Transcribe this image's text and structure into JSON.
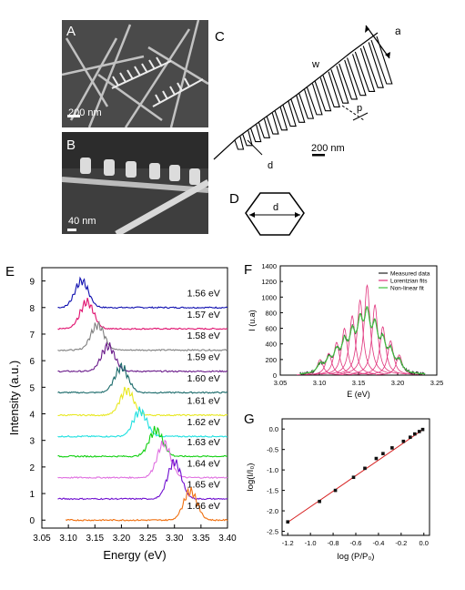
{
  "panels": {
    "A": {
      "letter": "A",
      "scale": "200 nm"
    },
    "B": {
      "letter": "B",
      "scale": "40 nm"
    },
    "C": {
      "letter": "C",
      "scale": "200 nm",
      "labels": {
        "a": "a",
        "w": "w",
        "p": "p",
        "d": "d"
      }
    },
    "D": {
      "letter": "D",
      "label": "d"
    }
  },
  "colors": {
    "sem_bg": "#5a5a5a",
    "fit_line": "#d62020"
  },
  "chart_data": [
    {
      "panel": "E",
      "type": "line",
      "xlabel": "Energy (eV)",
      "ylabel": "Intensity (a.u.)",
      "xlim": [
        3.05,
        3.4
      ],
      "ylim": [
        -0.3,
        9.5
      ],
      "xticks": [
        "3.05",
        "3.10",
        "3.15",
        "3.20",
        "3.25",
        "3.30",
        "3.35",
        "3.40"
      ],
      "yticks": [
        "0",
        "1",
        "2",
        "3",
        "4",
        "5",
        "6",
        "7",
        "8",
        "9"
      ],
      "series": [
        {
          "name": "1.56 eV",
          "offset": 8.0,
          "peak": 3.125,
          "height": 1.0,
          "color": "#1010b0"
        },
        {
          "name": "1.57 eV",
          "offset": 7.2,
          "peak": 3.135,
          "height": 1.0,
          "color": "#e0106e"
        },
        {
          "name": "1.58 eV",
          "offset": 6.4,
          "peak": 3.155,
          "height": 0.95,
          "color": "#808080"
        },
        {
          "name": "1.59 eV",
          "offset": 5.6,
          "peak": 3.175,
          "height": 0.95,
          "color": "#6a1a8a"
        },
        {
          "name": "1.60 eV",
          "offset": 4.8,
          "peak": 3.2,
          "height": 0.95,
          "color": "#1a6a6a"
        },
        {
          "name": "1.61 eV",
          "offset": 3.95,
          "peak": 3.21,
          "height": 0.95,
          "color": "#e8e820"
        },
        {
          "name": "1.62 eV",
          "offset": 3.15,
          "peak": 3.235,
          "height": 0.95,
          "color": "#20e0e0"
        },
        {
          "name": "1.63 eV",
          "offset": 2.4,
          "peak": 3.265,
          "height": 1.0,
          "color": "#10d010"
        },
        {
          "name": "1.64 eV",
          "offset": 1.6,
          "peak": 3.28,
          "height": 1.3,
          "color": "#e070e0"
        },
        {
          "name": "1.65 eV",
          "offset": 0.8,
          "peak": 3.3,
          "height": 1.4,
          "color": "#7010d0"
        },
        {
          "name": "1.66 eV",
          "offset": 0.0,
          "peak": 3.33,
          "height": 1.1,
          "color": "#f07010"
        }
      ]
    },
    {
      "panel": "F",
      "type": "line",
      "xlabel": "E (eV)",
      "ylabel": "I (u.a)",
      "xlim": [
        3.05,
        3.25
      ],
      "ylim": [
        0,
        1400
      ],
      "xticks": [
        "3.05",
        "3.10",
        "3.15",
        "3.20",
        "3.25"
      ],
      "yticks": [
        "0",
        "200",
        "400",
        "600",
        "800",
        "1000",
        "1200",
        "1400"
      ],
      "legend": [
        "Measured data",
        "Lorentzian fits",
        "Non-linear fit"
      ],
      "lorentz_centers": [
        3.101,
        3.112,
        3.122,
        3.132,
        3.142,
        3.152,
        3.161,
        3.171,
        3.181,
        3.191,
        3.202
      ],
      "lorentz_heights": [
        200,
        280,
        420,
        600,
        760,
        960,
        1150,
        900,
        620,
        440,
        260
      ],
      "colors": {
        "measured": "#222222",
        "lorentz": "#e0307a",
        "fit": "#40c040"
      }
    },
    {
      "panel": "G",
      "type": "scatter",
      "xlabel": "log (P/P₀)",
      "ylabel": "log(I/I₀)",
      "xlim": [
        -1.25,
        0.05
      ],
      "ylim": [
        -2.6,
        0.25
      ],
      "xticks": [
        "-1.2",
        "-1.0",
        "-0.8",
        "-0.6",
        "-0.4",
        "-0.2",
        "0.0"
      ],
      "yticks": [
        "-2.5",
        "-2.0",
        "-1.5",
        "-1.0",
        "-0.5",
        "0.0"
      ],
      "x": [
        -1.2,
        -0.92,
        -0.78,
        -0.62,
        -0.52,
        -0.42,
        -0.36,
        -0.28,
        -0.18,
        -0.12,
        -0.08,
        -0.04,
        -0.01
      ],
      "y": [
        -2.27,
        -1.77,
        -1.5,
        -1.18,
        -0.96,
        -0.72,
        -0.6,
        -0.46,
        -0.3,
        -0.2,
        -0.12,
        -0.06,
        -0.01
      ],
      "fit": {
        "x": [
          -1.2,
          0.0
        ],
        "y": [
          -2.28,
          0.0
        ]
      }
    }
  ]
}
